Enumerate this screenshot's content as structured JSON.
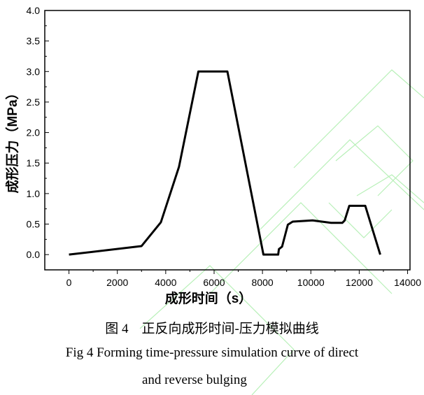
{
  "chart_data": {
    "type": "line",
    "xlabel": "成形时间（s）",
    "ylabel": "成形压力（MPa）",
    "xlim": [
      -1000,
      14100
    ],
    "ylim": [
      -0.25,
      4.0
    ],
    "xticks": [
      0,
      2000,
      4000,
      6000,
      8000,
      10000,
      12000,
      14000
    ],
    "yticks": [
      "0.0",
      "0.5",
      "1.0",
      "1.5",
      "2.0",
      "2.5",
      "3.0",
      "3.5",
      "4.0"
    ],
    "grid": false,
    "series": [
      {
        "color": "#000000",
        "x": [
          0,
          3000,
          3800,
          4550,
          5350,
          6550,
          8040,
          8650,
          8680,
          8810,
          9050,
          9250,
          10070,
          10840,
          11300,
          11400,
          11590,
          12250,
          12870
        ],
        "y": [
          0,
          0.14,
          0.53,
          1.44,
          3.0,
          3.0,
          0,
          0,
          0.09,
          0.13,
          0.49,
          0.54,
          0.56,
          0.52,
          0.52,
          0.56,
          0.8,
          0.8,
          0
        ]
      }
    ]
  },
  "caption": {
    "cn": "图 4　正反向成形时间-压力模拟曲线",
    "en_line1": "Fig 4 Forming time-pressure simulation curve of direct",
    "en_line2": "and reverse bulging"
  },
  "watermark_color": "#b8f0b8"
}
